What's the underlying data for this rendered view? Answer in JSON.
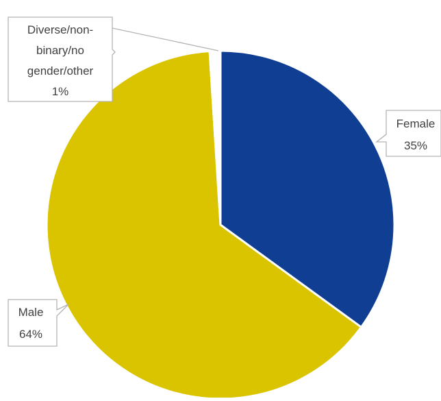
{
  "chart_data": {
    "type": "pie",
    "title": "",
    "slices": [
      {
        "label": "Female",
        "value": 35,
        "value_label": "35%",
        "color": "#0f3e93"
      },
      {
        "label": "Male",
        "value": 64,
        "value_label": "64%",
        "color": "#dac400"
      },
      {
        "label": "Diverse/non-binary/no gender/other",
        "value": 1,
        "value_label": "1%",
        "color": "#ffffff"
      }
    ],
    "start_angle": "12 o'clock",
    "direction": "clockwise",
    "slice_border_color": "#ffffff",
    "legend": "none",
    "data_labels": {
      "female": {
        "lines": [
          "Female",
          "35%"
        ]
      },
      "male": {
        "lines": [
          "Male",
          "64%"
        ]
      },
      "other": {
        "lines": [
          "Diverse/non-",
          "binary/no",
          "gender/other",
          "1%"
        ]
      }
    }
  }
}
